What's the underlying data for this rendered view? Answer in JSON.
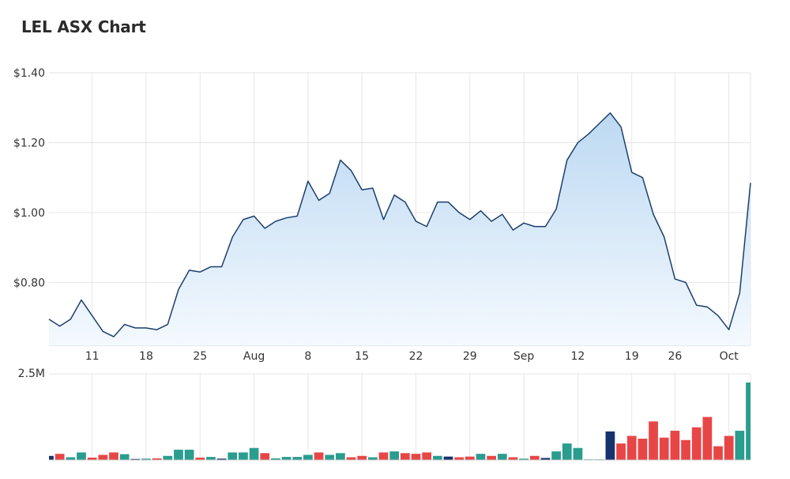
{
  "title": "LEL ASX Chart",
  "chart_data": {
    "type": "area",
    "title": "LEL ASX Chart",
    "xlabel": "",
    "ylabel": "",
    "ylim": [
      0.62,
      1.4
    ],
    "yticks": [
      {
        "value": 1.4,
        "label": "$1.40"
      },
      {
        "value": 1.2,
        "label": "$1.20"
      },
      {
        "value": 1.0,
        "label": "$1.00"
      },
      {
        "value": 0.8,
        "label": "$0.80"
      }
    ],
    "xticks": [
      {
        "index": 4,
        "label": "11"
      },
      {
        "index": 9,
        "label": "18"
      },
      {
        "index": 14,
        "label": "25"
      },
      {
        "index": 19,
        "label": "Aug"
      },
      {
        "index": 24,
        "label": "8"
      },
      {
        "index": 29,
        "label": "15"
      },
      {
        "index": 34,
        "label": "22"
      },
      {
        "index": 39,
        "label": "29"
      },
      {
        "index": 44,
        "label": "Sep"
      },
      {
        "index": 49,
        "label": "12"
      },
      {
        "index": 54,
        "label": "19"
      },
      {
        "index": 58,
        "label": "26"
      },
      {
        "index": 63,
        "label": "Oct"
      }
    ],
    "price": [
      0.695,
      0.675,
      0.695,
      0.75,
      0.705,
      0.66,
      0.645,
      0.68,
      0.67,
      0.67,
      0.665,
      0.68,
      0.78,
      0.835,
      0.83,
      0.845,
      0.845,
      0.93,
      0.98,
      0.99,
      0.955,
      0.975,
      0.985,
      0.99,
      1.09,
      1.035,
      1.055,
      1.15,
      1.12,
      1.065,
      1.07,
      0.98,
      1.05,
      1.03,
      0.975,
      0.96,
      1.03,
      1.03,
      1.0,
      0.98,
      1.005,
      0.975,
      0.995,
      0.95,
      0.97,
      0.96,
      0.96,
      1.01,
      1.15,
      1.2,
      1.225,
      1.255,
      1.285,
      1.245,
      1.115,
      1.1,
      0.995,
      0.93,
      0.81,
      0.8,
      0.735,
      0.73,
      0.705,
      0.665,
      0.77,
      1.085
    ],
    "volume": {
      "ylim": [
        0,
        2.5
      ],
      "unit": "M",
      "max_label": "2.5M",
      "values": [
        0.12,
        0.18,
        0.08,
        0.22,
        0.07,
        0.15,
        0.22,
        0.17,
        0.03,
        0.04,
        0.05,
        0.12,
        0.3,
        0.3,
        0.07,
        0.09,
        0.04,
        0.22,
        0.22,
        0.35,
        0.2,
        0.05,
        0.09,
        0.09,
        0.15,
        0.22,
        0.15,
        0.2,
        0.08,
        0.12,
        0.08,
        0.22,
        0.25,
        0.2,
        0.18,
        0.22,
        0.12,
        0.1,
        0.08,
        0.1,
        0.18,
        0.12,
        0.18,
        0.08,
        0.04,
        0.12,
        0.06,
        0.25,
        0.48,
        0.35,
        0.02,
        0.02,
        0.83,
        0.48,
        0.7,
        0.62,
        1.12,
        0.65,
        0.85,
        0.58,
        0.95,
        1.25,
        0.4,
        0.7,
        0.85,
        2.25
      ],
      "colors": [
        "navy",
        "red",
        "teal",
        "teal",
        "red",
        "red",
        "red",
        "teal",
        "navy",
        "teal",
        "red",
        "teal",
        "teal",
        "teal",
        "red",
        "teal",
        "navy",
        "teal",
        "teal",
        "teal",
        "red",
        "teal",
        "teal",
        "teal",
        "teal",
        "red",
        "teal",
        "teal",
        "red",
        "red",
        "teal",
        "red",
        "teal",
        "red",
        "red",
        "red",
        "teal",
        "navy",
        "red",
        "red",
        "teal",
        "red",
        "teal",
        "red",
        "teal",
        "red",
        "navy",
        "teal",
        "teal",
        "teal",
        "teal",
        "teal",
        "navy",
        "red",
        "red",
        "red",
        "red",
        "red",
        "red",
        "red",
        "red",
        "red",
        "red",
        "red",
        "teal",
        "teal"
      ]
    },
    "colors": {
      "line": "#1b3f6e",
      "fill_top": "#bcd9f2",
      "fill_bottom": "#f4f9fe",
      "grid": "#e6e6e6",
      "up": "#2a9d8f",
      "down": "#e84646",
      "flat": "#17336b"
    },
    "grid": true,
    "legend": "none"
  }
}
